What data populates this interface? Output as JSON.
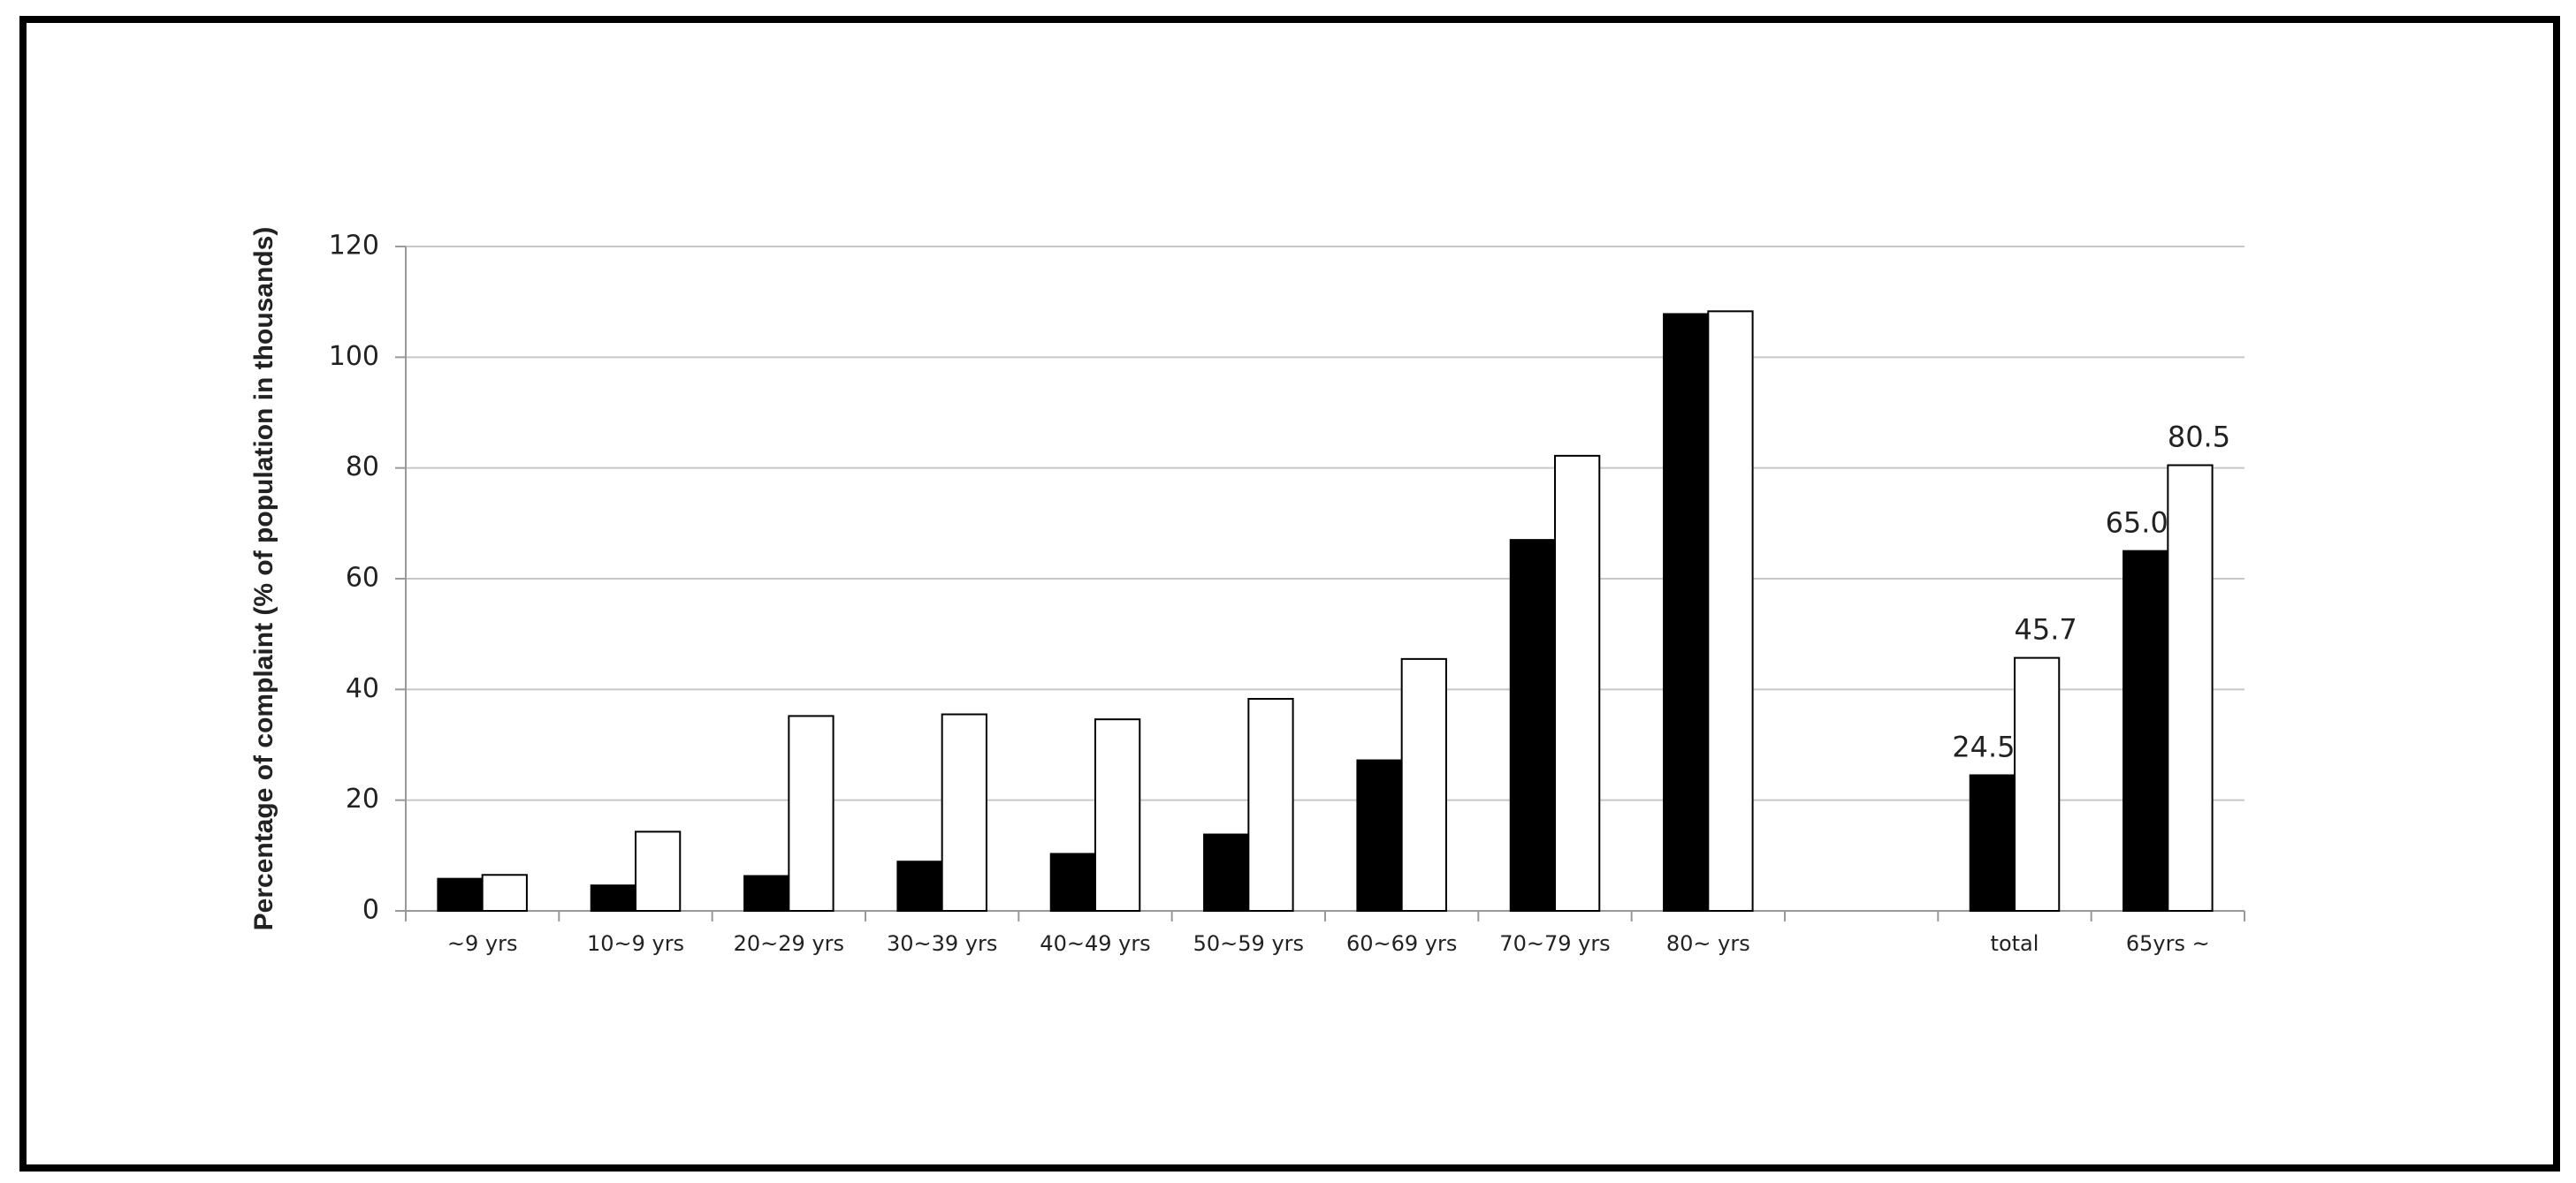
{
  "chart_data": {
    "type": "bar",
    "y_label": "Percentage of complaint (% of population in thousands)",
    "categories": [
      "~9 yrs",
      "10~9 yrs",
      "20~29 yrs",
      "30~39 yrs",
      "40~49 yrs",
      "50~59 yrs",
      "60~69 yrs",
      "70~79 yrs",
      "80~ yrs",
      null,
      "total",
      "65yrs ~"
    ],
    "series": [
      {
        "color": "#000000",
        "values": [
          5.8,
          4.6,
          6.3,
          8.9,
          10.3,
          13.8,
          27.2,
          67,
          107.8,
          null,
          24.5,
          65
        ],
        "value_labels": [
          null,
          null,
          null,
          null,
          null,
          null,
          null,
          null,
          null,
          null,
          "24.5",
          "65.0"
        ]
      },
      {
        "color": "#ffffff",
        "values": [
          6.5,
          14.3,
          35.2,
          35.5,
          34.6,
          38.3,
          45.5,
          82.2,
          108.3,
          null,
          45.7,
          80.5
        ],
        "value_labels": [
          null,
          null,
          null,
          null,
          null,
          null,
          null,
          null,
          null,
          null,
          "45.7",
          "80.5"
        ]
      }
    ],
    "ylim": [
      0,
      120
    ],
    "yticks": [
      0,
      20,
      40,
      60,
      80,
      100,
      120
    ],
    "grid": true
  }
}
